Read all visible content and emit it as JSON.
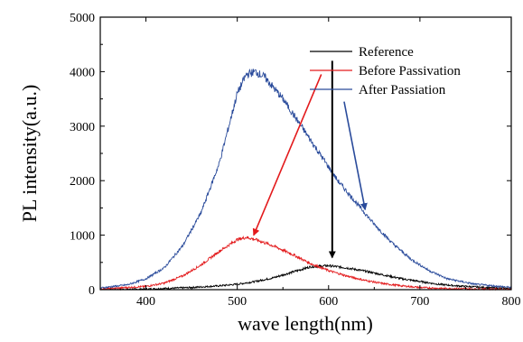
{
  "chart_data": {
    "type": "line",
    "title": "",
    "xlabel": "wave length(nm)",
    "ylabel": "PL intensity(a.u.)",
    "xlim": [
      350,
      800
    ],
    "ylim": [
      0,
      5000
    ],
    "x_ticks": [
      400,
      500,
      600,
      700,
      800
    ],
    "y_ticks": [
      0,
      1000,
      2000,
      3000,
      4000,
      5000
    ],
    "legend_position": "top-right",
    "grid": false,
    "series": [
      {
        "name": "Reference",
        "color": "#000000",
        "x": [
          350,
          400,
          450,
          480,
          500,
          520,
          540,
          560,
          580,
          600,
          620,
          640,
          660,
          680,
          700,
          720,
          740,
          760,
          780,
          800
        ],
        "y": [
          0,
          10,
          40,
          70,
          100,
          150,
          220,
          320,
          420,
          440,
          400,
          340,
          270,
          200,
          150,
          100,
          70,
          50,
          30,
          20
        ]
      },
      {
        "name": "Before Passivation",
        "color": "#e31a1c",
        "x": [
          350,
          400,
          420,
          440,
          460,
          480,
          500,
          510,
          520,
          540,
          560,
          580,
          600,
          620,
          640,
          660,
          680,
          700,
          720,
          750,
          800
        ],
        "y": [
          10,
          60,
          120,
          250,
          450,
          700,
          920,
          960,
          920,
          800,
          650,
          480,
          350,
          250,
          170,
          110,
          70,
          40,
          25,
          15,
          5
        ]
      },
      {
        "name": "After Passiation",
        "color": "#2a4b9b",
        "x": [
          350,
          380,
          400,
          420,
          440,
          460,
          480,
          500,
          510,
          520,
          530,
          550,
          570,
          590,
          610,
          630,
          650,
          670,
          690,
          710,
          730,
          760,
          800
        ],
        "y": [
          30,
          90,
          200,
          400,
          800,
          1400,
          2300,
          3600,
          3950,
          4000,
          3900,
          3500,
          3000,
          2500,
          2000,
          1600,
          1200,
          850,
          560,
          350,
          200,
          100,
          40
        ]
      }
    ],
    "annotations": [
      {
        "type": "arrow",
        "color": "#e31a1c",
        "from": [
          592,
          3950
        ],
        "to": [
          518,
          1000
        ]
      },
      {
        "type": "arrow",
        "color": "#000000",
        "from": [
          604,
          4200
        ],
        "to": [
          604,
          590
        ]
      },
      {
        "type": "arrow",
        "color": "#2a4b9b",
        "from": [
          617,
          3450
        ],
        "to": [
          640,
          1470
        ]
      }
    ]
  }
}
